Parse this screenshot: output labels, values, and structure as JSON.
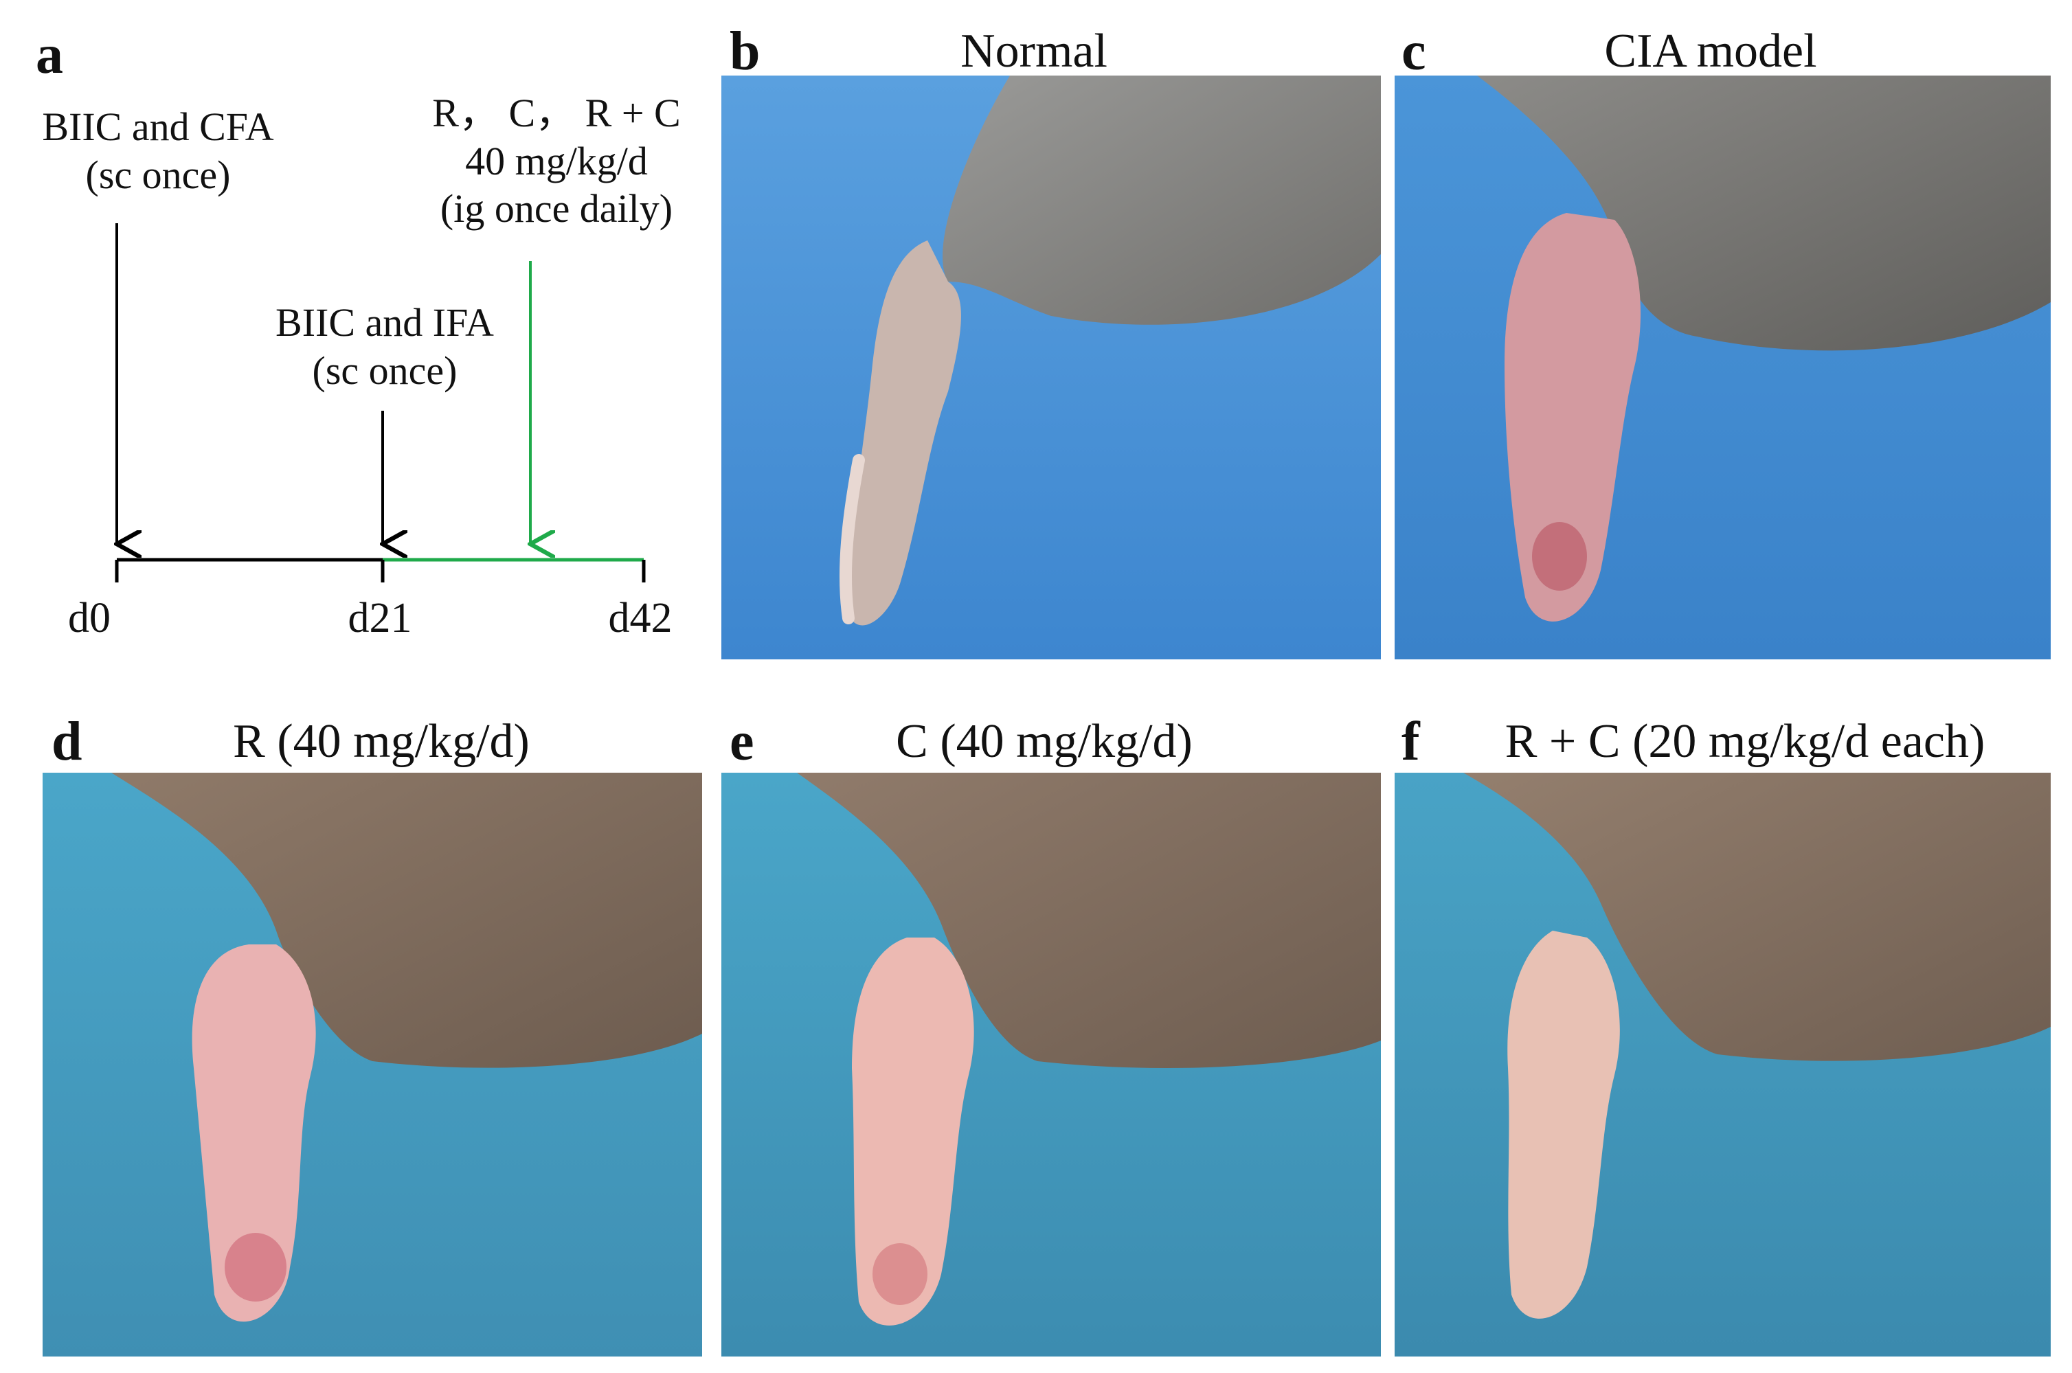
{
  "panel_a": {
    "label": "a",
    "step1": {
      "line1": "BIIC and CFA",
      "line2": "(sc once)"
    },
    "step2": {
      "line1": "BIIC and IFA",
      "line2": "(sc once)"
    },
    "treatment": {
      "line1": "R，  C，  R + C",
      "line2": "40 mg/kg/d",
      "line3": "(ig once daily)"
    },
    "ticks": [
      "d0",
      "d21",
      "d42"
    ],
    "colors": {
      "pre": "#000000",
      "treatment": "#1faa4a"
    }
  },
  "panels": [
    {
      "label": "b",
      "title": "Normal",
      "paw": "pale"
    },
    {
      "label": "c",
      "title": "CIA model",
      "paw": "red-swollen"
    },
    {
      "label": "d",
      "title": "R (40 mg/kg/d)",
      "paw": "pink"
    },
    {
      "label": "e",
      "title": "C (40 mg/kg/d)",
      "paw": "pink"
    },
    {
      "label": "f",
      "title": "R + C (20 mg/kg/d each)",
      "paw": "pale"
    }
  ]
}
